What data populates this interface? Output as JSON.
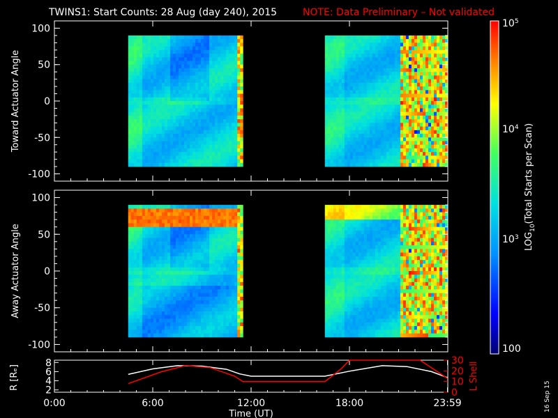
{
  "title": "TWINS1: Start Counts: 28 Aug (day 240), 2015",
  "note": "NOTE: Data Preliminary – Not validated",
  "date_stamp": "16 Sep 15",
  "colors": {
    "background": "#000000",
    "axes": "#ffffff",
    "note": "#ff0000",
    "r_line": "#ffffff",
    "l_line": "#ff0000"
  },
  "chart_data": [
    {
      "type": "heatmap",
      "ylabel": "Toward Actuator Angle",
      "ylim": [
        -110,
        110
      ],
      "yticks": [
        -100,
        -50,
        0,
        50,
        100
      ],
      "x_range_hours": [
        0,
        24
      ],
      "data_blocks_hours": [
        [
          4.5,
          11.5
        ],
        [
          16.5,
          24
        ]
      ],
      "angle_range": [
        -90,
        90
      ]
    },
    {
      "type": "heatmap",
      "ylabel": "Away Actuator Angle",
      "ylim": [
        -110,
        110
      ],
      "yticks": [
        -100,
        -50,
        0,
        50,
        100
      ],
      "x_range_hours": [
        0,
        24
      ],
      "data_blocks_hours": [
        [
          4.5,
          11.5
        ],
        [
          16.5,
          24
        ]
      ],
      "angle_range": [
        -90,
        90
      ]
    },
    {
      "type": "line",
      "ylabel_left": "R [Rₑ]",
      "ylabel_right": "L Shell",
      "xlabel": "Time (UT)",
      "xtick_labels": [
        "0:00",
        "6:00",
        "12:00",
        "18:00",
        "23:59"
      ],
      "xticks_hours": [
        0,
        6,
        12,
        18,
        23.98
      ],
      "yticks_left": [
        2,
        4,
        6,
        8
      ],
      "yticks_right": [
        0,
        10,
        20,
        30
      ],
      "ylim_left": [
        1.5,
        8.5
      ],
      "ylim_right": [
        0,
        30
      ],
      "series": [
        {
          "axis": "left",
          "x": [
            4.5,
            6,
            7.5,
            9,
            10.5,
            11.3,
            12,
            14,
            16.5,
            18,
            20,
            21.5,
            23,
            23.98
          ],
          "y": [
            5.4,
            6.6,
            7.3,
            7.2,
            6.5,
            5.5,
            5.0,
            5.0,
            5.0,
            6.1,
            7.3,
            7.1,
            6.0,
            4.7
          ]
        },
        {
          "axis": "right",
          "x": [
            4.5,
            6.5,
            8,
            9.5,
            11,
            11.5,
            16.5,
            17.5,
            18,
            22.3,
            23.98
          ],
          "y": [
            8,
            19,
            25,
            23,
            15,
            10,
            10,
            22,
            30,
            30,
            13
          ]
        }
      ]
    }
  ],
  "colorbar": {
    "label": "LOG10(Total Starts per Scan)",
    "range": [
      100,
      100000
    ],
    "tick_labels": [
      "10^5",
      "10^4",
      "10^3",
      "100"
    ]
  }
}
